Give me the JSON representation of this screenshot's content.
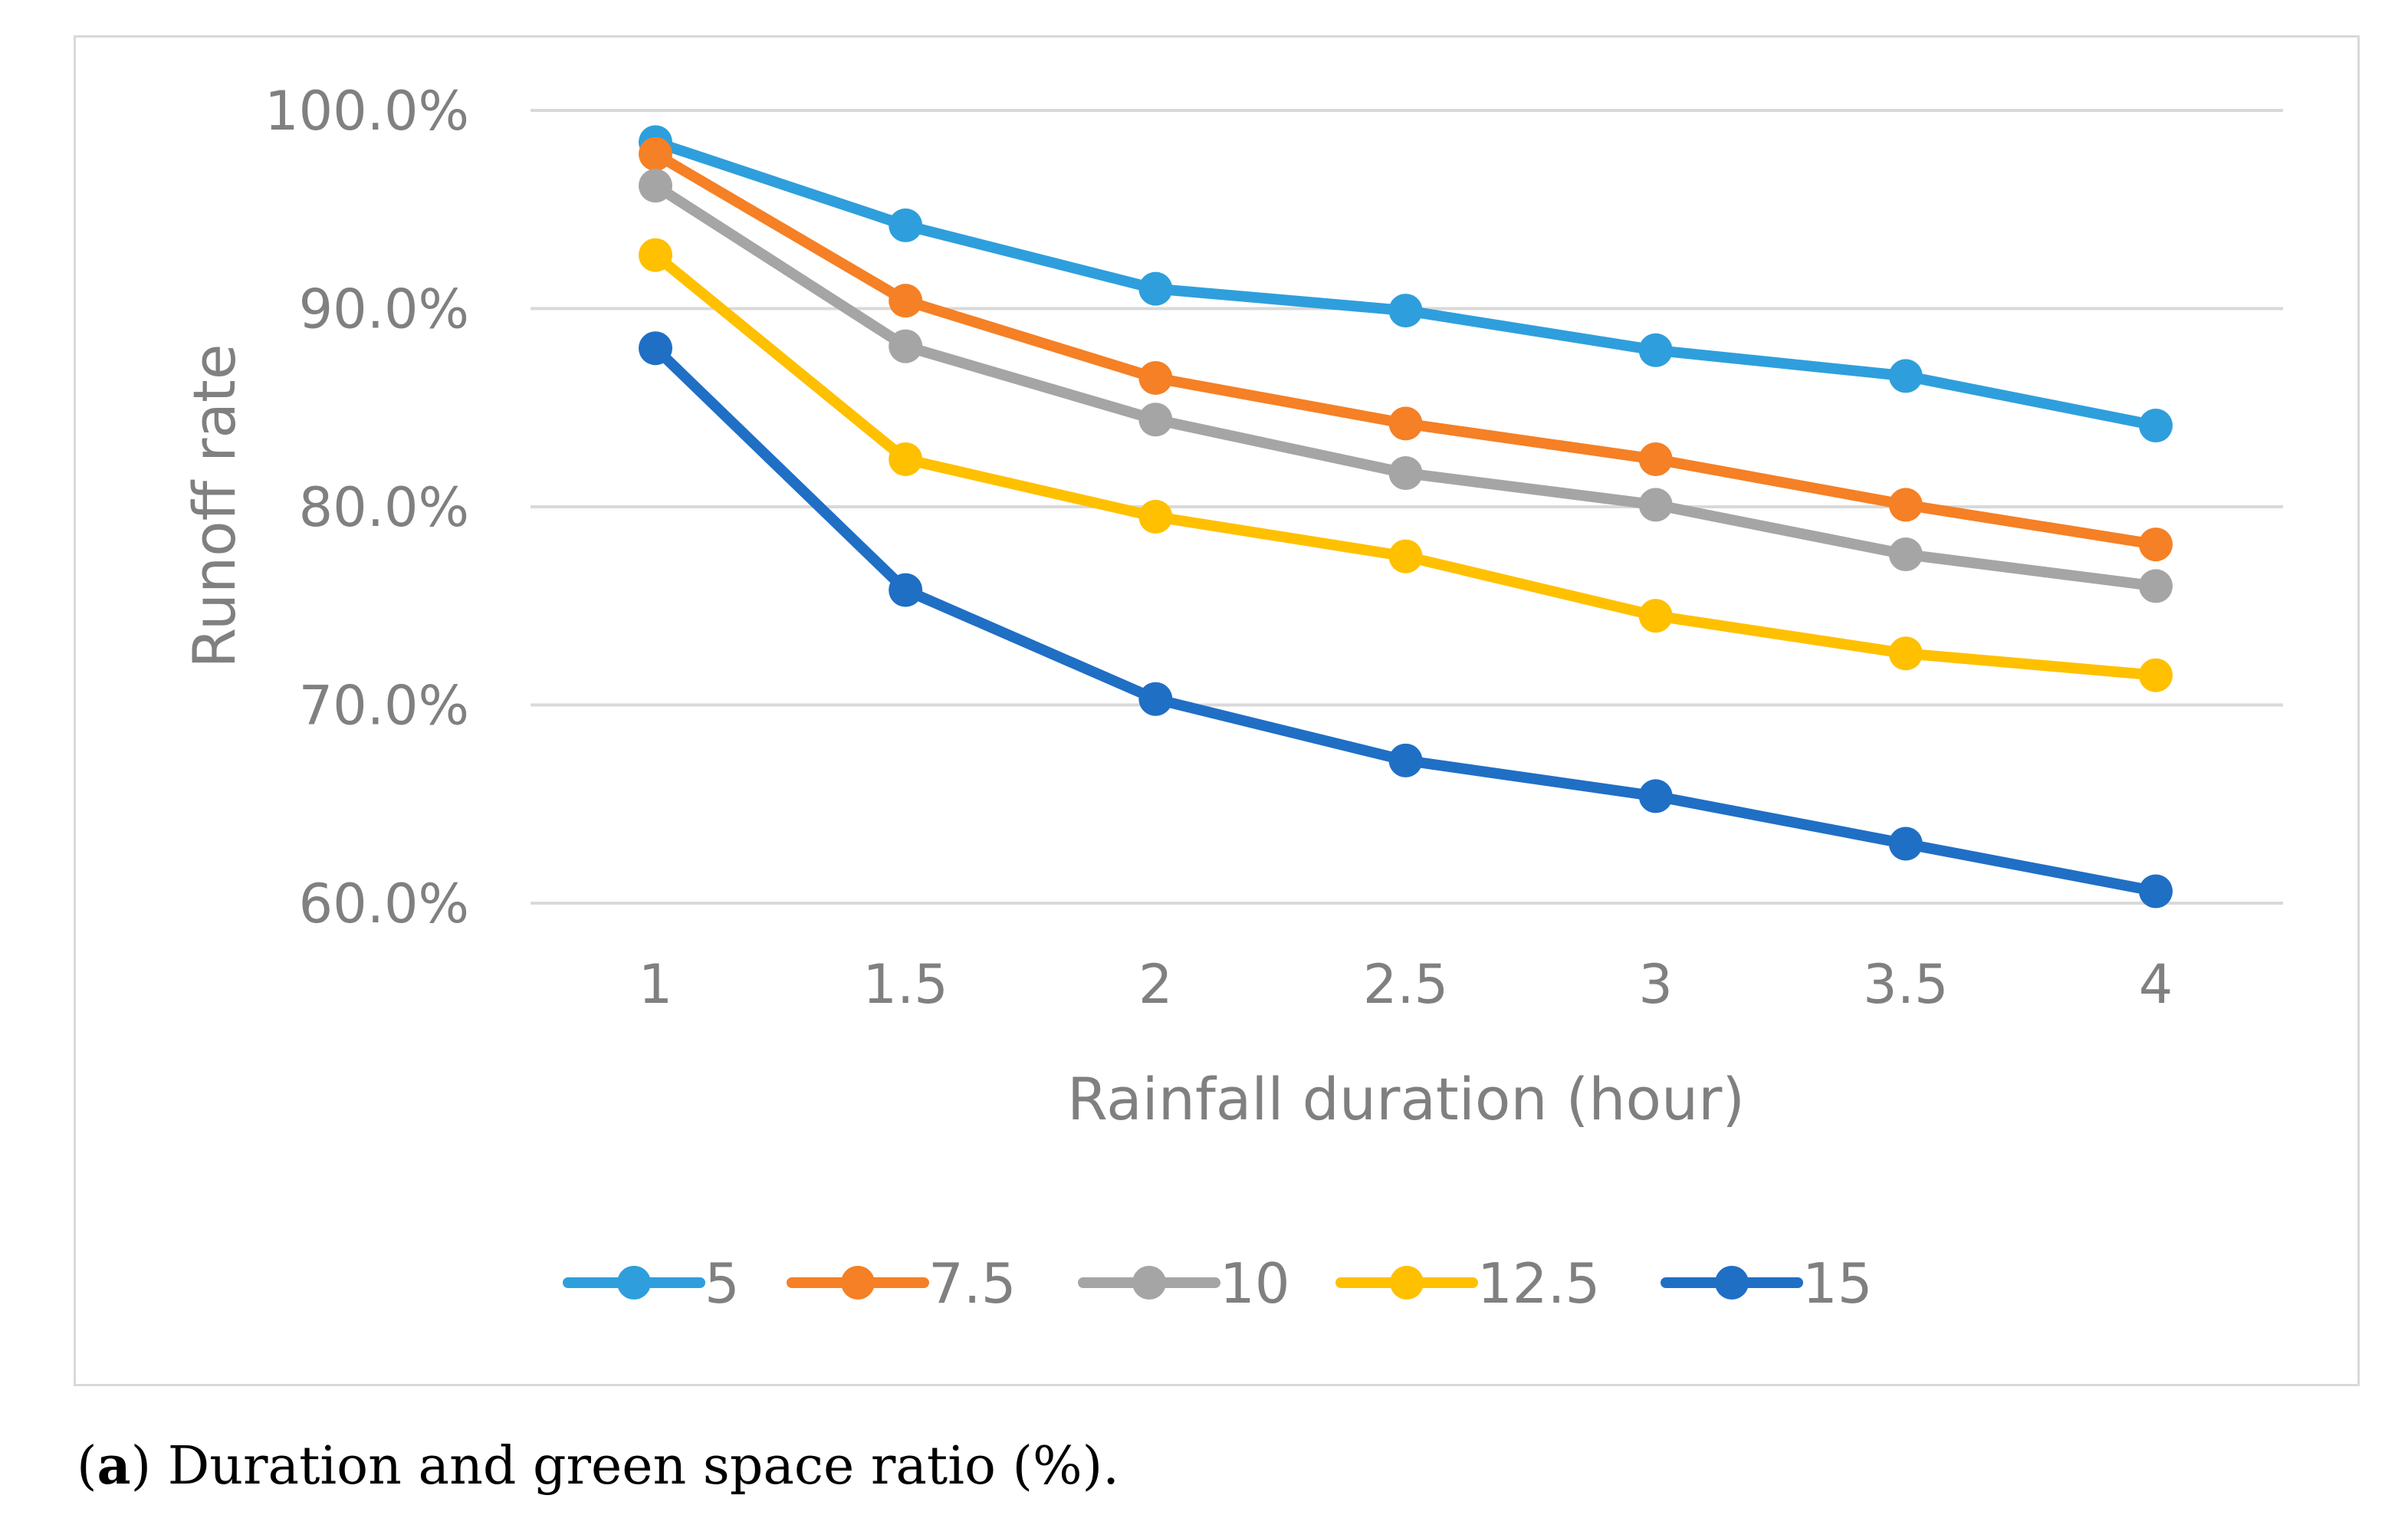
{
  "chart_data": {
    "type": "line",
    "title": "",
    "xlabel": "Rainfall duration (hour)",
    "ylabel": "Runoff rate",
    "x": [
      "1",
      "1.5",
      "2",
      "2.5",
      "3",
      "3.5",
      "4"
    ],
    "yticks": [
      "60.0%",
      "70.0%",
      "80.0%",
      "90.0%",
      "100.0%"
    ],
    "ylim": [
      60,
      100
    ],
    "grid": true,
    "legend_position": "bottom",
    "series": [
      {
        "name": "5",
        "color": "#2e9fdc",
        "values": [
          98.4,
          94.2,
          91.0,
          89.9,
          87.9,
          86.6,
          84.1
        ]
      },
      {
        "name": "7.5",
        "color": "#f58025",
        "values": [
          97.8,
          90.4,
          86.5,
          84.2,
          82.4,
          80.1,
          78.1
        ]
      },
      {
        "name": "10",
        "color": "#a5a5a5",
        "values": [
          96.2,
          88.1,
          84.4,
          81.7,
          80.1,
          77.6,
          76.0
        ]
      },
      {
        "name": "12.5",
        "color": "#ffc000",
        "values": [
          92.7,
          82.4,
          79.5,
          77.5,
          74.5,
          72.6,
          71.5
        ]
      },
      {
        "name": "15",
        "color": "#1f6fc5",
        "values": [
          88.0,
          75.8,
          70.3,
          67.2,
          65.4,
          63.0,
          60.6
        ]
      }
    ]
  },
  "caption": {
    "label": "a",
    "open": "(",
    "close": ")",
    "text": " Duration and green space ratio (%)."
  }
}
